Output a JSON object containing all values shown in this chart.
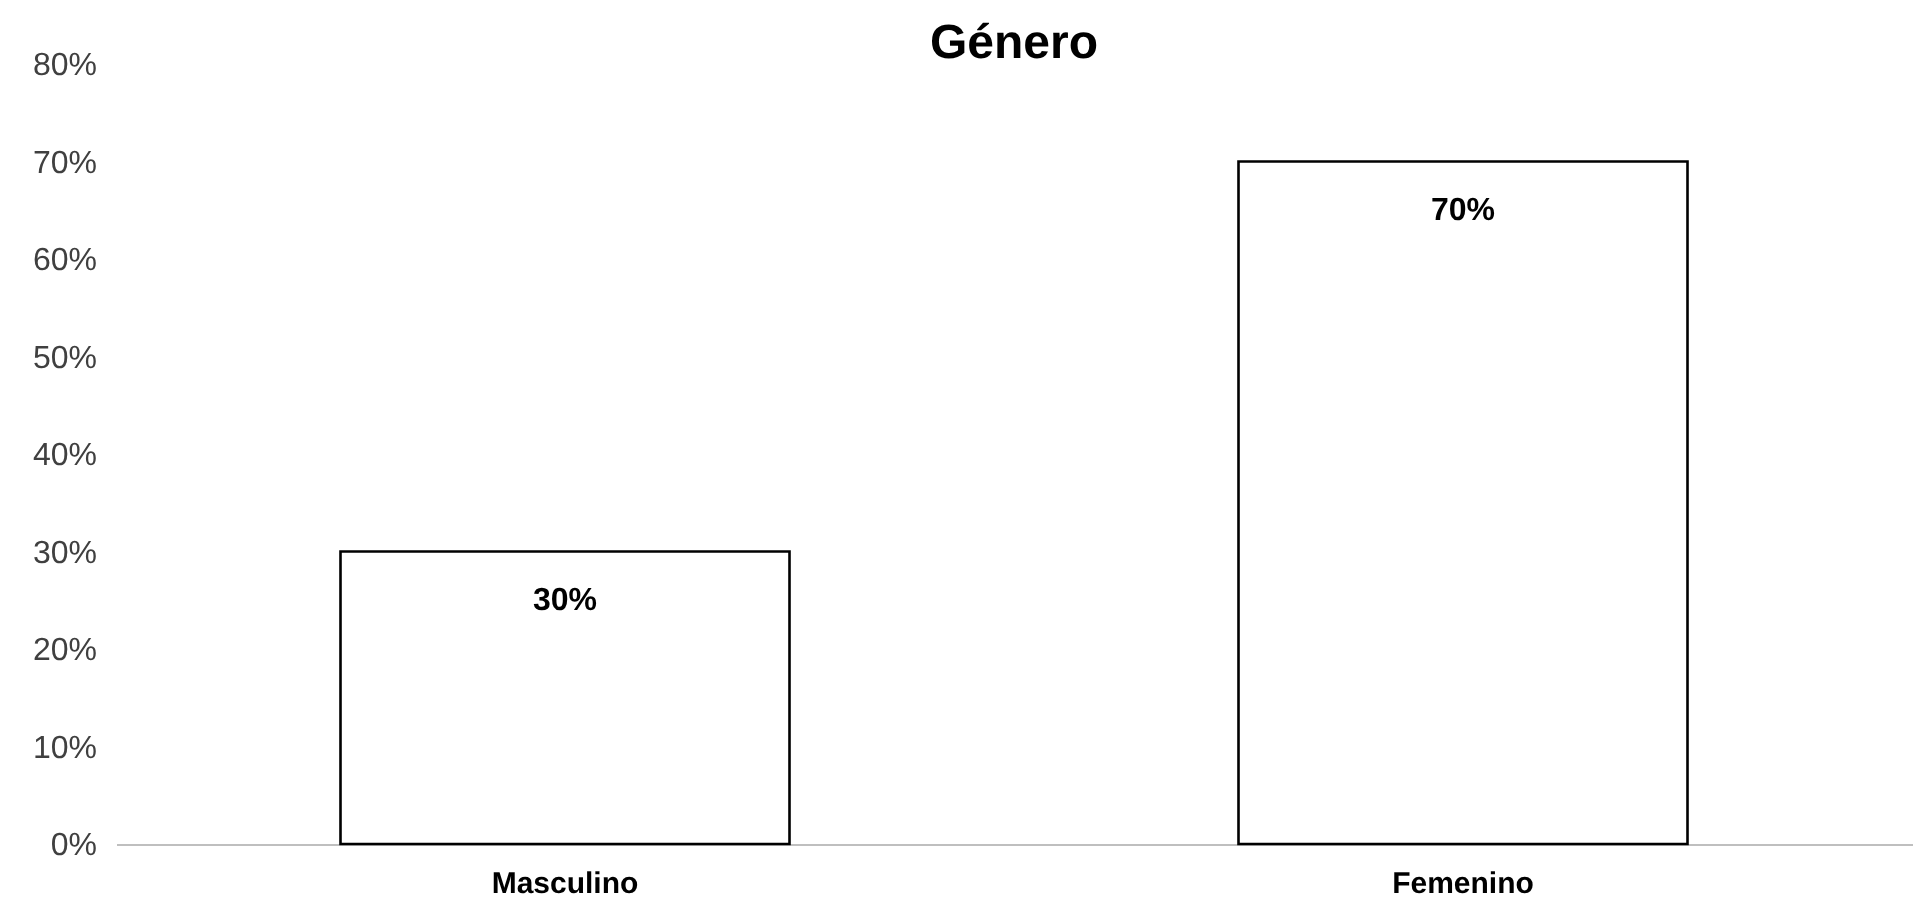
{
  "chart_data": {
    "type": "bar",
    "title": "Género",
    "categories": [
      "Masculino",
      "Femenino"
    ],
    "values": [
      30,
      70
    ],
    "color": "#ffffff",
    "value_labels": [
      "30%",
      "70%"
    ],
    "ylim": [
      0,
      80
    ],
    "yticks": [
      {
        "value": 0,
        "label": "0%"
      },
      {
        "value": 10,
        "label": "10%"
      },
      {
        "value": 20,
        "label": "20%"
      },
      {
        "value": 30,
        "label": "30%"
      },
      {
        "value": 40,
        "label": "40%"
      },
      {
        "value": 50,
        "label": "50%"
      },
      {
        "value": 60,
        "label": "60%"
      },
      {
        "value": 70,
        "label": "70%"
      },
      {
        "value": 80,
        "label": "80%"
      }
    ],
    "grid": false
  }
}
